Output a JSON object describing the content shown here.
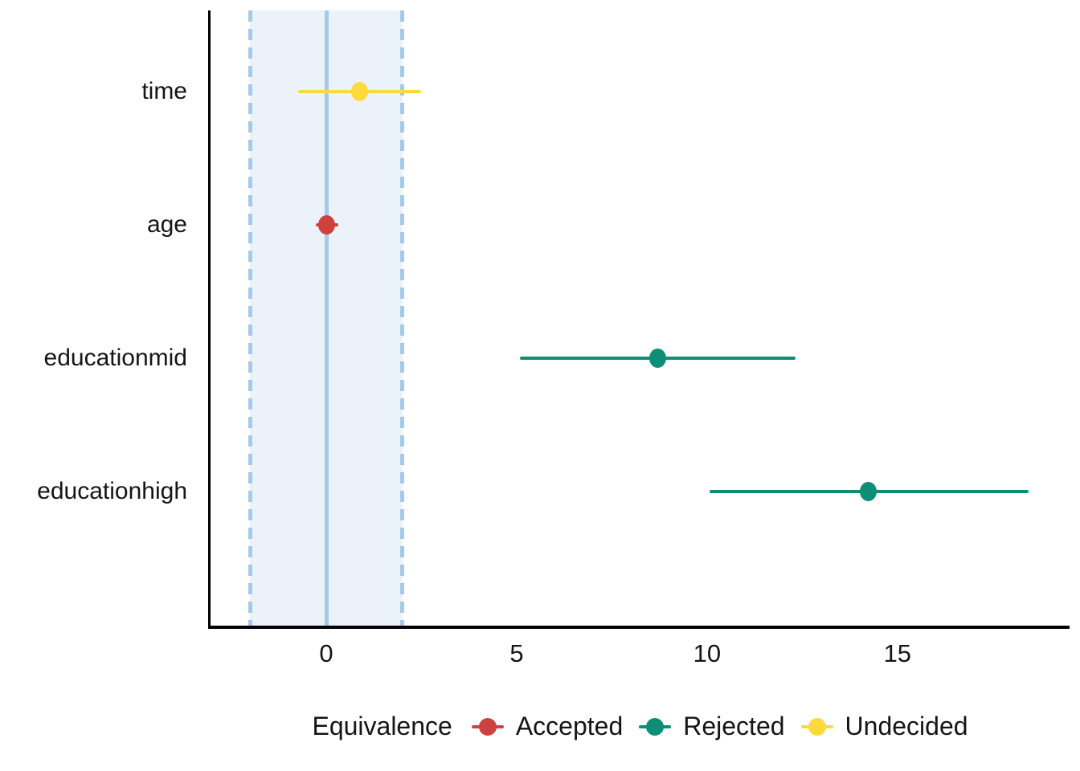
{
  "chart_data": {
    "type": "pointrange",
    "title": "",
    "xlabel": "",
    "ylabel": "",
    "categories": [
      "time",
      "age",
      "educationmid",
      "educationhigh"
    ],
    "series": [
      {
        "label": "time",
        "estimate": 0.88,
        "ci_low": -0.75,
        "ci_high": 2.48,
        "group": "Undecided"
      },
      {
        "label": "age",
        "estimate": 0.02,
        "ci_low": -0.27,
        "ci_high": 0.32,
        "group": "Accepted"
      },
      {
        "label": "educationmid",
        "estimate": 8.7,
        "ci_low": 5.08,
        "ci_high": 12.33,
        "group": "Rejected"
      },
      {
        "label": "educationhigh",
        "estimate": 14.24,
        "ci_low": 10.06,
        "ci_high": 18.44,
        "group": "Rejected"
      }
    ],
    "rope": {
      "low": -2,
      "high": 2,
      "center_line": 0
    },
    "x_ticks": [
      0,
      5,
      10,
      15
    ],
    "xlim": [
      -3.04,
      19.52
    ],
    "grid": false,
    "legend": {
      "title": "Equivalence",
      "position": "bottom",
      "entries": [
        {
          "label": "Accepted",
          "color": "#CD423F"
        },
        {
          "label": "Rejected",
          "color": "#0E8D77"
        },
        {
          "label": "Undecided",
          "color": "#FCDA3B"
        }
      ]
    },
    "colors": {
      "accepted": "#CD423F",
      "rejected": "#0E8D77",
      "undecided": "#FCDA3B",
      "rope_fill": "#EBF2FA",
      "rope_line": "#A6C9EA",
      "axis": "#000000",
      "background": "#FFFFFF"
    }
  }
}
